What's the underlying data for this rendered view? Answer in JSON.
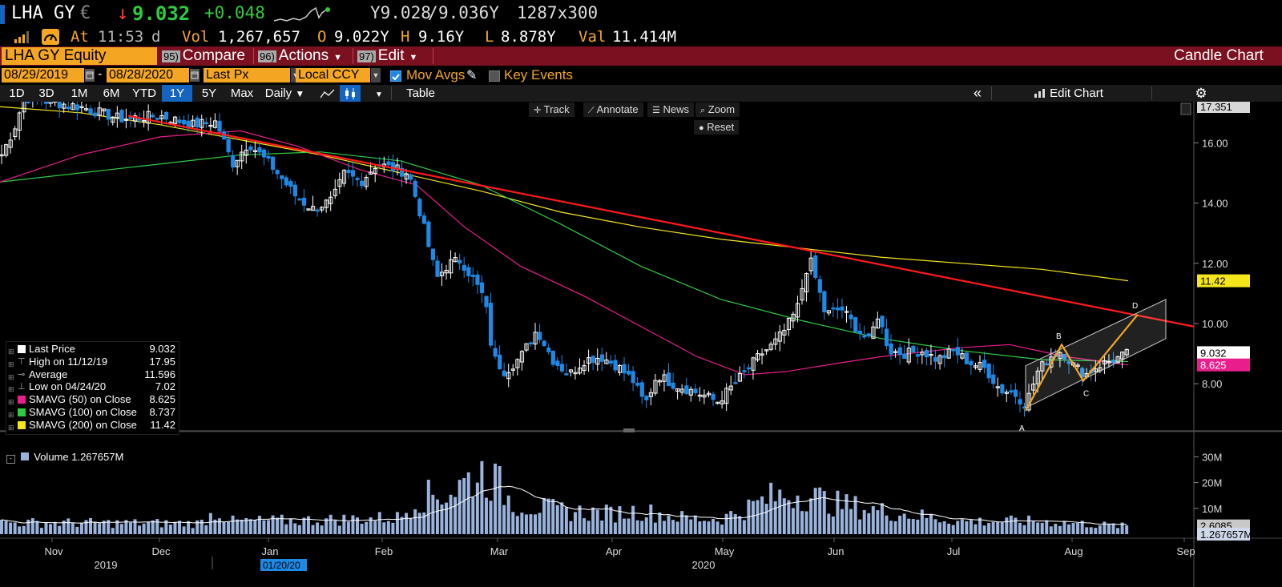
{
  "ticker": {
    "symbol": "LHA GY",
    "currency": "€",
    "arrow": "↓",
    "last": "9.032",
    "change": "+0.048",
    "bid": "Y9.028",
    "ask": "9.036Y",
    "size": "1287x300",
    "at_label": "At",
    "time": "11:53",
    "day": "d",
    "vol_label": "Vol",
    "vol": "1,267,657",
    "open_label": "O",
    "open": "9.022Y",
    "high_label": "H",
    "high": "9.16Y",
    "low_label": "L",
    "low": "8.878Y",
    "val_label": "Val",
    "val": "11.414M"
  },
  "toolbar": {
    "security": "LHA GY Equity",
    "compare_num": "95)",
    "compare": "Compare",
    "actions_num": "96)",
    "actions": "Actions",
    "edit_num": "97)",
    "edit": "Edit",
    "chart_type": "Candle Chart"
  },
  "options": {
    "start_date": "08/29/2019",
    "end_date": "08/28/2020",
    "dash": "-",
    "price_field": "Last Px",
    "currency": "Local CCY",
    "mov_avgs": "Mov Avgs",
    "key_events": "Key Events"
  },
  "ranges": [
    "1D",
    "3D",
    "1M",
    "6M",
    "YTD",
    "1Y",
    "5Y",
    "Max"
  ],
  "active_range": "1Y",
  "periodicity": "Daily",
  "table_label": "Table",
  "edit_chart": "Edit Chart",
  "chart_tools": {
    "track": "Track",
    "annotate": "Annotate",
    "news": "News",
    "zoom": "Zoom",
    "reset": "Reset"
  },
  "legend": [
    {
      "label": "Last Price",
      "value": "9.032",
      "color": "#ffffff"
    },
    {
      "label": "High on 11/12/19",
      "value": "17.95",
      "color": ""
    },
    {
      "label": "Average",
      "value": "11.596",
      "color": ""
    },
    {
      "label": "Low on 04/24/20",
      "value": "7.02",
      "color": ""
    },
    {
      "label": "SMAVG (50)  on Close",
      "value": "8.625",
      "color": "#e91e8c"
    },
    {
      "label": "SMAVG (100)  on Close",
      "value": "8.737",
      "color": "#2ecc40"
    },
    {
      "label": "SMAVG (200)  on Close",
      "value": "11.42",
      "color": "#f5e61c"
    }
  ],
  "volume_legend": "Volume  1.267657M",
  "price_axis": [
    "16.00",
    "14.00",
    "12.00",
    "10.00",
    "8.00"
  ],
  "price_tags": {
    "top": "17.351",
    "sma200": "11.42",
    "last": "9.032",
    "sma50": "8.625"
  },
  "volume_axis": [
    "30M",
    "20M",
    "10M"
  ],
  "volume_tags": {
    "hidden": "2.6085",
    "last": "1.267657M"
  },
  "months": [
    "Nov",
    "Dec",
    "Jan",
    "Feb",
    "Mar",
    "Apr",
    "May",
    "Jun",
    "Jul",
    "Aug",
    "Sep"
  ],
  "years": [
    "2019",
    "2020"
  ],
  "cursor_date": "01/20/20",
  "pattern_labels": [
    "A",
    "B",
    "C",
    "D"
  ],
  "colors": {
    "up": "#ffffff",
    "down": "#1e88e5",
    "trend": "#ff1a1a",
    "pattern": "#f5a623",
    "sma50": "#e91e8c",
    "sma100": "#2ecc40",
    "sma200": "#f5e61c"
  }
}
